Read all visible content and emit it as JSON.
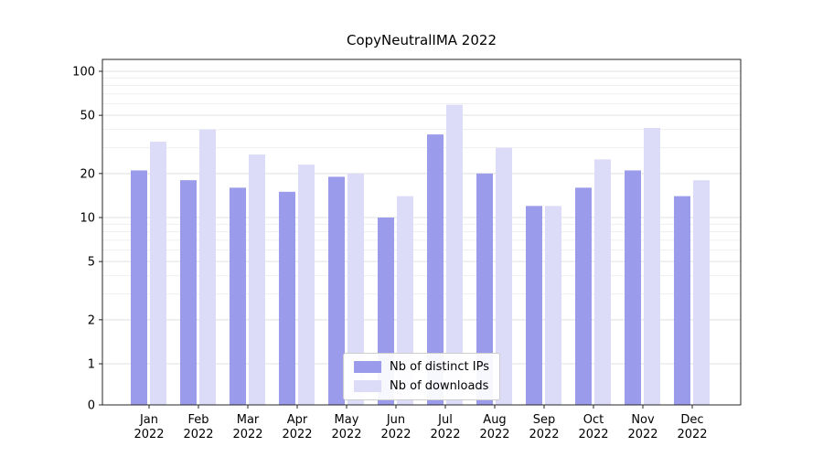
{
  "chart_data": {
    "type": "bar",
    "title": "CopyNeutralIMA 2022",
    "categories": [
      "Jan 2022",
      "Feb 2022",
      "Mar 2022",
      "Apr 2022",
      "May 2022",
      "Jun 2022",
      "Jul 2022",
      "Aug 2022",
      "Sep 2022",
      "Oct 2022",
      "Nov 2022",
      "Dec 2022"
    ],
    "series": [
      {
        "name": "Nb of distinct IPs",
        "color": "#9b9bec",
        "values": [
          21,
          18,
          16,
          15,
          19,
          10,
          37,
          20,
          12,
          16,
          21,
          14
        ]
      },
      {
        "name": "Nb of downloads",
        "color": "#dcdcf8",
        "values": [
          33,
          40,
          27,
          23,
          20,
          14,
          59,
          30,
          12,
          25,
          41,
          18
        ]
      }
    ],
    "yscale": "symlog",
    "yticks": [
      0,
      1,
      2,
      5,
      10,
      20,
      50,
      100
    ],
    "ylim": [
      0,
      120
    ],
    "xlabel": "",
    "ylabel": "",
    "grid": true,
    "legend_position": "lower center"
  },
  "colors": {
    "axis": "#262626",
    "gridline_minor": "#efefef",
    "gridline_major": "#e2e2e2",
    "text": "#000000"
  }
}
